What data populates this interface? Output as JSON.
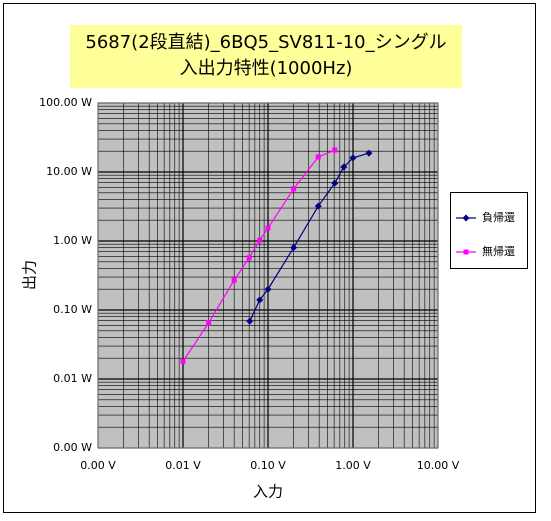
{
  "chart_data": {
    "type": "line",
    "title": [
      "5687(2段直結)_6BQ5_SV811-10_シングル",
      "入出力特性(1000Hz)"
    ],
    "x_label": "入力",
    "y_label": "出力",
    "xscale": "log",
    "yscale": "log",
    "grid": true,
    "minor_grid": true,
    "legend": "right",
    "xlim": [
      0.001,
      10
    ],
    "ylim": [
      0.001,
      100
    ],
    "xticks": [
      {
        "value": 0.001,
        "label": "0.00 V"
      },
      {
        "value": 0.01,
        "label": "0.01 V"
      },
      {
        "value": 0.1,
        "label": "0.10 V"
      },
      {
        "value": 1,
        "label": "1.00 V"
      },
      {
        "value": 10,
        "label": "10.00 V"
      }
    ],
    "yticks": [
      {
        "value": 0.001,
        "label": "0.00 W"
      },
      {
        "value": 0.01,
        "label": "0.01 W"
      },
      {
        "value": 0.1,
        "label": "0.10 W"
      },
      {
        "value": 1,
        "label": "1.00 W"
      },
      {
        "value": 10,
        "label": "10.00 W"
      },
      {
        "value": 100,
        "label": "100.00 W"
      }
    ],
    "series": [
      {
        "name": "負帰還",
        "color": "#000080",
        "marker": "diamond",
        "x": [
          0.061,
          0.08,
          0.1,
          0.2,
          0.39,
          0.61,
          0.78,
          1.0,
          1.54
        ],
        "values": [
          0.069,
          0.14,
          0.2,
          0.8,
          3.2,
          6.9,
          11.8,
          16,
          18.8
        ]
      },
      {
        "name": "無帰還",
        "color": "#ff00ff",
        "marker": "square",
        "x": [
          0.01,
          0.02,
          0.04,
          0.06,
          0.08,
          0.1,
          0.2,
          0.39,
          0.61
        ],
        "values": [
          0.018,
          0.065,
          0.27,
          0.57,
          1.03,
          1.54,
          5.7,
          16.5,
          20.8
        ]
      }
    ]
  }
}
